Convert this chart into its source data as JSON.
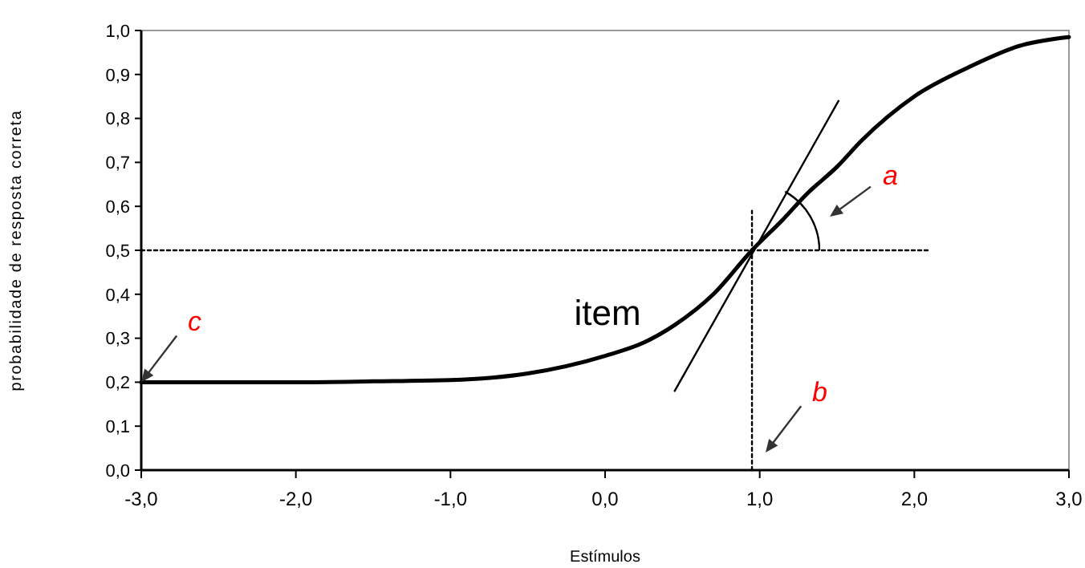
{
  "chart_data": {
    "type": "line",
    "xlabel": "Estímulos",
    "ylabel": "probabilidade de resposta correta",
    "xlim": [
      -3,
      3
    ],
    "ylim": [
      0,
      1
    ],
    "xticks": [
      {
        "value": -3,
        "label": "-3,0"
      },
      {
        "value": -2,
        "label": "-2,0"
      },
      {
        "value": -1,
        "label": "-1,0"
      },
      {
        "value": 0,
        "label": "0,0"
      },
      {
        "value": 1,
        "label": "1,0"
      },
      {
        "value": 2,
        "label": "2,0"
      },
      {
        "value": 3,
        "label": "3,0"
      }
    ],
    "yticks": [
      {
        "value": 0,
        "label": "0,0"
      },
      {
        "value": 0.1,
        "label": "0,1"
      },
      {
        "value": 0.2,
        "label": "0,2"
      },
      {
        "value": 0.3,
        "label": "0,3"
      },
      {
        "value": 0.4,
        "label": "0,4"
      },
      {
        "value": 0.5,
        "label": "0,5"
      },
      {
        "value": 0.6,
        "label": "0,6"
      },
      {
        "value": 0.7,
        "label": "0,7"
      },
      {
        "value": 0.8,
        "label": "0,8"
      },
      {
        "value": 0.9,
        "label": "0,9"
      },
      {
        "value": 1,
        "label": "1,0"
      }
    ],
    "grid": false,
    "series": [
      {
        "color": "#000000",
        "line_style": "solid",
        "x": [
          -3,
          -2.5,
          -2,
          -1.5,
          -1,
          -0.5,
          0,
          0.25,
          0.45,
          0.7,
          0.95,
          1.15,
          1.31,
          1.5,
          1.66,
          2,
          2.35,
          2.7,
          3
        ],
        "values": [
          0.2,
          0.2,
          0.2,
          0.202,
          0.205,
          0.22,
          0.26,
          0.29,
          0.33,
          0.4,
          0.5,
          0.57,
          0.63,
          0.69,
          0.75,
          0.85,
          0.916,
          0.967,
          0.985
        ]
      },
      {
        "color": "#000000",
        "line_style": "solid",
        "x": [
          0.45,
          1.51
        ],
        "values": [
          0.18,
          0.84
        ]
      },
      {
        "color": "#000000",
        "line_style": "dotted",
        "x": [
          -3,
          2.09
        ],
        "values": [
          0.5,
          0.5
        ]
      },
      {
        "color": "#000000",
        "line_style": "dotted",
        "x": [
          0.95,
          0.95
        ],
        "values": [
          0,
          0.59
        ]
      }
    ],
    "annotations": [
      "item",
      "a",
      "b",
      {
        "text": "c",
        "x": -3,
        "y": 0.2
      }
    ]
  }
}
